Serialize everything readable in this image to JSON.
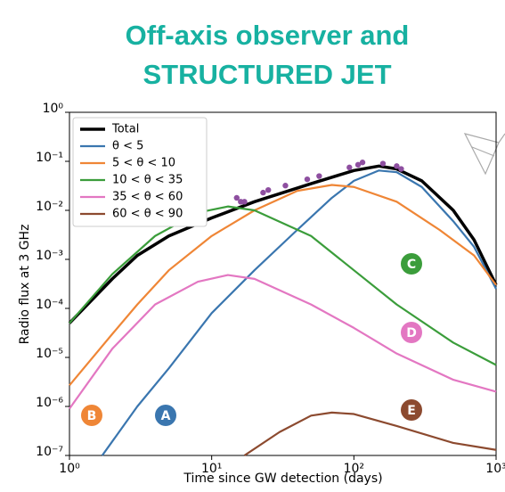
{
  "chart_data": {
    "type": "line",
    "title": [
      "Off-axis observer and",
      "STRUCTURED JET"
    ],
    "xlabel": "Time since GW detection (days)",
    "ylabel": "Radio flux at 3 GHz",
    "xscale": "log",
    "yscale": "log",
    "xlim": [
      1,
      1000
    ],
    "ylim": [
      1e-07,
      1
    ],
    "xticks": [
      {
        "value": 1,
        "label": "10⁰"
      },
      {
        "value": 10,
        "label": "10¹"
      },
      {
        "value": 100,
        "label": "10²"
      },
      {
        "value": 1000,
        "label": "10³"
      }
    ],
    "yticks": [
      {
        "value": 1e-07,
        "label": "10⁻⁷"
      },
      {
        "value": 1e-06,
        "label": "10⁻⁶"
      },
      {
        "value": 1e-05,
        "label": "10⁻⁵"
      },
      {
        "value": 0.0001,
        "label": "10⁻⁴"
      },
      {
        "value": 0.001,
        "label": "10⁻³"
      },
      {
        "value": 0.01,
        "label": "10⁻²"
      },
      {
        "value": 0.1,
        "label": "10⁻¹"
      },
      {
        "value": 1,
        "label": "10⁰"
      }
    ],
    "legend": "upper left",
    "series": [
      {
        "name": "Total",
        "color": "#000000",
        "x": [
          1,
          2,
          3,
          5,
          10,
          20,
          50,
          100,
          150,
          200,
          300,
          500,
          700,
          1000
        ],
        "values": [
          5e-05,
          0.0004,
          0.0012,
          0.003,
          0.007,
          0.015,
          0.035,
          0.065,
          0.08,
          0.07,
          0.04,
          0.01,
          0.0025,
          0.0003
        ]
      },
      {
        "name": "θ < 5",
        "color": "#3a76af",
        "x": [
          1.7,
          3,
          5,
          10,
          20,
          40,
          70,
          100,
          150,
          200,
          300,
          500,
          700,
          1000
        ],
        "values": [
          1e-07,
          1e-06,
          6e-06,
          8e-05,
          0.0006,
          0.004,
          0.018,
          0.04,
          0.065,
          0.06,
          0.03,
          0.006,
          0.0018,
          0.00025
        ]
      },
      {
        "name": "5 < θ < 10",
        "color": "#ef8636",
        "x": [
          1,
          2,
          3,
          5,
          10,
          20,
          40,
          70,
          100,
          200,
          400,
          700,
          1000
        ],
        "values": [
          2.7e-06,
          3e-05,
          0.00012,
          0.0006,
          0.003,
          0.01,
          0.025,
          0.033,
          0.03,
          0.015,
          0.004,
          0.0012,
          0.0003
        ]
      },
      {
        "name": "10 < θ < 35",
        "color": "#3b9d3b",
        "x": [
          1,
          2,
          4,
          8,
          13,
          20,
          50,
          100,
          200,
          500,
          1000
        ],
        "values": [
          5e-05,
          0.0005,
          0.003,
          0.009,
          0.012,
          0.01,
          0.003,
          0.0006,
          0.00012,
          2e-05,
          7e-06
        ]
      },
      {
        "name": "35 < θ < 60",
        "color": "#e377c2",
        "x": [
          1,
          2,
          4,
          8,
          13,
          20,
          50,
          100,
          200,
          500,
          1000
        ],
        "values": [
          9e-07,
          1.5e-05,
          0.00012,
          0.00035,
          0.00048,
          0.0004,
          0.00012,
          4e-05,
          1.2e-05,
          3.5e-06,
          2e-06
        ]
      },
      {
        "name": "60 < θ < 90",
        "color": "#8c4a2f",
        "x": [
          17,
          30,
          50,
          70,
          100,
          200,
          500,
          1000
        ],
        "values": [
          1e-07,
          3e-07,
          6.5e-07,
          7.5e-07,
          7e-07,
          4e-07,
          1.8e-07,
          1.3e-07
        ]
      }
    ],
    "observations": {
      "color": "#8e4fa0",
      "x": [
        15,
        16,
        17,
        23,
        25,
        33,
        47,
        57,
        93,
        107,
        115,
        160,
        200,
        215
      ],
      "values": [
        0.018,
        0.015,
        0.015,
        0.023,
        0.026,
        0.032,
        0.043,
        0.05,
        0.075,
        0.085,
        0.095,
        0.09,
        0.08,
        0.07
      ]
    },
    "annotations": [
      {
        "text": "A",
        "color": "#3a76af"
      },
      {
        "text": "B",
        "color": "#ef8636"
      },
      {
        "text": "C",
        "color": "#3b9d3b"
      },
      {
        "text": "D",
        "color": "#e377c2"
      },
      {
        "text": "E",
        "color": "#8c4a2f"
      }
    ]
  }
}
